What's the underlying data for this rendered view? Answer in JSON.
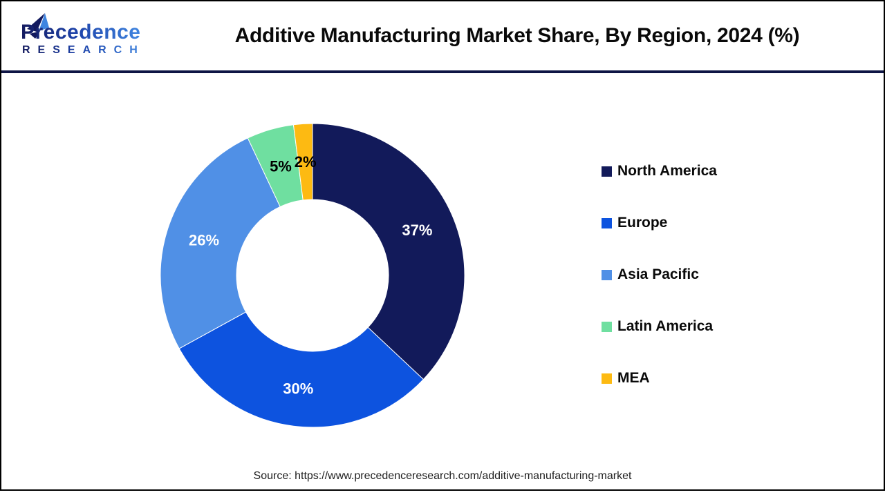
{
  "header": {
    "logo": {
      "line1": "Precedence",
      "line2": "RESEARCH"
    },
    "title": "Additive Manufacturing Market Share, By Region, 2024 (%)"
  },
  "chart_data": {
    "type": "pie",
    "donut": true,
    "start_angle": "top",
    "direction": "clockwise",
    "title": "Additive Manufacturing Market Share, By Region, 2024 (%)",
    "categories": [
      "North America",
      "Europe",
      "Asia Pacific",
      "Latin America",
      "MEA"
    ],
    "values": [
      37,
      30,
      26,
      5,
      2
    ],
    "labels": [
      "37%",
      "30%",
      "26%",
      "5%",
      "2%"
    ],
    "colors": [
      "#121A5A",
      "#0D53DF",
      "#5090E6",
      "#6FDFA0",
      "#FDBA12"
    ],
    "label_colors": [
      "#FFFFFF",
      "#FFFFFF",
      "#FFFFFF",
      "#000000",
      "#000000"
    ],
    "legend_position": "right",
    "total": 100
  },
  "footer": {
    "source": "Source: https://www.precedenceresearch.com/additive-manufacturing-market"
  }
}
